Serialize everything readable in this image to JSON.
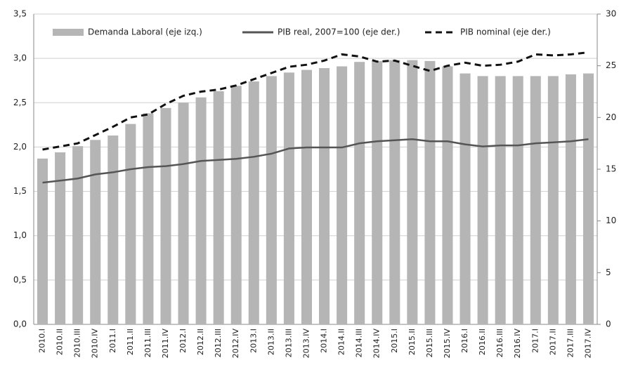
{
  "chart_data": {
    "type": "bar",
    "categories": [
      "2010.I",
      "2010.II",
      "2010.III",
      "2010.IV",
      "2011.I",
      "2011.II",
      "2011.III",
      "2011.IV",
      "2012.I",
      "2012.II",
      "2012.III",
      "2012.IV",
      "2013.I",
      "2013.II",
      "2013.III",
      "2013.IV",
      "2014.I",
      "2014.II",
      "2014.III",
      "2014.IV",
      "2015.I",
      "2015.II",
      "2015.III",
      "2015.IV",
      "2016.I",
      "2016.II",
      "2016.III",
      "2016.IV",
      "2017.I",
      "2017.II",
      "2017.III",
      "2017.IV"
    ],
    "series": [
      {
        "name": "Demanda Laboral (eje izq.)",
        "type": "bar",
        "color": "#b5b5b5",
        "values": [
          1.87,
          1.94,
          2.01,
          2.08,
          2.13,
          2.26,
          2.38,
          2.44,
          2.5,
          2.56,
          2.63,
          2.69,
          2.74,
          2.8,
          2.84,
          2.87,
          2.89,
          2.91,
          2.96,
          2.97,
          2.98,
          2.98,
          2.97,
          2.91,
          2.83,
          2.8,
          2.8,
          2.8,
          2.8,
          2.8,
          2.82,
          2.83
        ]
      },
      {
        "name": "PIB real, 2007=100 (eje der.)",
        "type": "line",
        "axis": "y2",
        "color": "#555555",
        "dash": false,
        "values": [
          13.7,
          13.9,
          14.1,
          14.5,
          14.7,
          15.0,
          15.2,
          15.3,
          15.5,
          15.8,
          15.9,
          16.0,
          16.2,
          16.5,
          17.0,
          17.1,
          17.1,
          17.1,
          17.5,
          17.7,
          17.8,
          17.9,
          17.7,
          17.7,
          17.4,
          17.2,
          17.3,
          17.3,
          17.5,
          17.6,
          17.7,
          17.9
        ]
      },
      {
        "name": "PIB nominal (eje der.)",
        "type": "line",
        "axis": "y2",
        "color": "#111111",
        "dash": true,
        "values": [
          16.9,
          17.2,
          17.5,
          18.3,
          19.1,
          20.0,
          20.3,
          21.3,
          22.1,
          22.5,
          22.7,
          23.1,
          23.7,
          24.3,
          24.9,
          25.1,
          25.5,
          26.1,
          25.9,
          25.4,
          25.5,
          25.0,
          24.5,
          25.0,
          25.3,
          25.0,
          25.1,
          25.4,
          26.1,
          26.0,
          26.1,
          26.3
        ]
      }
    ],
    "ylim": [
      0,
      3.5
    ],
    "yticks": [
      {
        "value": 0,
        "label": "0,0"
      },
      {
        "value": 0.5,
        "label": "0,5"
      },
      {
        "value": 1,
        "label": "1,0"
      },
      {
        "value": 1.5,
        "label": "1,5"
      },
      {
        "value": 2,
        "label": "2,0"
      },
      {
        "value": 2.5,
        "label": "2,5"
      },
      {
        "value": 3,
        "label": "3,0"
      },
      {
        "value": 3.5,
        "label": "3,5"
      }
    ],
    "y2lim": [
      0,
      30
    ],
    "y2ticks": [
      0,
      5,
      10,
      15,
      20,
      25,
      30
    ],
    "grid": true,
    "legend": "top"
  }
}
